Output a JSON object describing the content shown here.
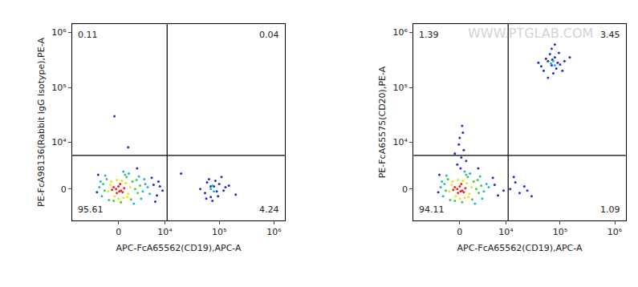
{
  "chart_data": [
    {
      "type": "scatter",
      "x_label": "APC-FcA65562(CD19),APC-A",
      "y_label": "PE-FcA98136(Rabbit IgG Isotype),PE-A",
      "xlim": [
        -10000,
        1600000
      ],
      "ylim": [
        -5000,
        1400000
      ],
      "xticks": [
        0,
        {
          "value": 10000,
          "label": "10⁴"
        },
        {
          "value": 100000,
          "label": "10⁵"
        },
        {
          "value": 1000000,
          "label": "10⁶"
        }
      ],
      "yticks": [
        0,
        {
          "value": 10000,
          "label": "10⁴"
        },
        {
          "value": 100000,
          "label": "10⁵"
        },
        {
          "value": 1000000,
          "label": "10⁶"
        }
      ],
      "gates": {
        "x": 11000,
        "y": 5500
      },
      "quadrants": {
        "upper_left": 0.11,
        "upper_right": 0.04,
        "lower_left": 95.61,
        "lower_right": 4.24
      },
      "series": [
        {
          "color": "#1f2bd6",
          "x": [
            6000,
            7000,
            8000,
            5500,
            -2800,
            9000,
            6500,
            -3000,
            7500,
            2500,
            45000,
            55000,
            60000,
            70000,
            80000,
            90000,
            100000,
            65000,
            75000,
            85000,
            120000,
            150000,
            200000,
            58000,
            95000,
            110000,
            130000,
            70000,
            -500,
            1200,
            20000
          ],
          "y": [
            500,
            -800,
            300,
            1400,
            1800,
            -200,
            -1600,
            -400,
            900,
            2800,
            0,
            -500,
            800,
            -1000,
            300,
            -300,
            600,
            1200,
            -1500,
            1000,
            -200,
            400,
            -700,
            -1200,
            -900,
            1500,
            200,
            300,
            30000,
            8000,
            2000
          ]
        },
        {
          "color": "#19b8e0",
          "x": [
            -2400,
            3500,
            4000,
            2800,
            -2200,
            4500,
            3200,
            -1700,
            5000,
            1300,
            -2600,
            3800,
            2000,
            600,
            70000,
            80000,
            75000
          ],
          "y": [
            900,
            -300,
            600,
            1600,
            -900,
            200,
            -1200,
            1700,
            -600,
            2000,
            200,
            1200,
            -1900,
            2300,
            0,
            -300,
            400
          ]
        },
        {
          "color": "#3fcf3f",
          "x": [
            -1800,
            1800,
            2200,
            -1500,
            2600,
            1000,
            -600,
            3000,
            1600,
            -2000,
            300,
            2400,
            -1200,
            800
          ],
          "y": [
            -200,
            900,
            0,
            1200,
            -500,
            1500,
            -1500,
            400,
            -1300,
            600,
            -1700,
            1100,
            -1400,
            1800
          ]
        },
        {
          "color": "#f2e11d",
          "x": [
            -1000,
            900,
            1200,
            -1300,
            400,
            -500,
            1500,
            -200,
            1100,
            -900,
            600,
            0
          ],
          "y": [
            500,
            700,
            -600,
            -300,
            1000,
            -900,
            200,
            1100,
            -1000,
            900,
            -1100,
            -1200
          ]
        },
        {
          "color": "#e8281e",
          "x": [
            -300,
            0,
            300,
            -600,
            500,
            200,
            -200,
            700,
            -800,
            100
          ],
          "y": [
            0,
            300,
            -200,
            200,
            -400,
            600,
            -500,
            100,
            -100,
            -300
          ]
        }
      ]
    },
    {
      "type": "scatter",
      "x_label": "APC-FcA65562(CD19),APC-A",
      "y_label": "PE-FcA65575(CD20),PE-A",
      "xlim": [
        -10000,
        1600000
      ],
      "ylim": [
        -5000,
        1400000
      ],
      "xticks": [
        0,
        {
          "value": 10000,
          "label": "10⁴"
        },
        {
          "value": 100000,
          "label": "10⁵"
        },
        {
          "value": 1000000,
          "label": "10⁶"
        }
      ],
      "yticks": [
        0,
        {
          "value": 10000,
          "label": "10⁴"
        },
        {
          "value": 100000,
          "label": "10⁵"
        },
        {
          "value": 1000000,
          "label": "10⁶"
        }
      ],
      "gates": {
        "x": 11000,
        "y": 5500
      },
      "quadrants": {
        "upper_left": 1.39,
        "upper_right": 3.45,
        "lower_left": 94.11,
        "lower_right": 1.09
      },
      "annotations": [
        {
          "text": "WWW.PTGLAB.COM"
        }
      ],
      "series": [
        {
          "color": "#1f2bd6",
          "x": [
            6000,
            7000,
            5500,
            -2800,
            9000,
            -3000,
            2500,
            -300,
            200,
            500,
            -100,
            800,
            0,
            400,
            -600,
            300,
            100,
            50000,
            60000,
            70000,
            80000,
            90000,
            65000,
            75000,
            85000,
            55000,
            100000,
            120000,
            45000,
            70000,
            95000,
            60000,
            80000,
            150000,
            40000,
            110000,
            72000,
            12000,
            15000,
            18000,
            22000,
            30000,
            14000,
            25000
          ],
          "y": [
            500,
            -800,
            1400,
            1800,
            -200,
            -400,
            2800,
            3500,
            5000,
            7000,
            9000,
            4200,
            12000,
            15000,
            6000,
            20000,
            2800,
            200000,
            300000,
            250000,
            350000,
            280000,
            400000,
            180000,
            220000,
            330000,
            260000,
            300000,
            240000,
            500000,
            420000,
            150000,
            600000,
            350000,
            280000,
            200000,
            320000,
            0,
            800,
            -500,
            300,
            -900,
            1500,
            -200
          ]
        },
        {
          "color": "#19b8e0",
          "x": [
            -2400,
            3500,
            4000,
            2800,
            -2200,
            4500,
            3200,
            -1700,
            1300,
            -2600,
            2000,
            600,
            68000,
            75000,
            80000
          ],
          "y": [
            900,
            -300,
            600,
            1600,
            -900,
            200,
            -1200,
            1700,
            2000,
            200,
            -1900,
            2300,
            270000,
            300000,
            250000
          ]
        },
        {
          "color": "#3fcf3f",
          "x": [
            -1800,
            1800,
            2200,
            -1500,
            2600,
            1000,
            -600,
            3000,
            1600,
            -2000,
            300,
            2400,
            -1200,
            800
          ],
          "y": [
            -200,
            900,
            0,
            1200,
            -500,
            1500,
            -1500,
            400,
            -1300,
            600,
            -1700,
            1100,
            -1400,
            1800
          ]
        },
        {
          "color": "#f2e11d",
          "x": [
            -1000,
            900,
            1200,
            -1300,
            400,
            -500,
            1500,
            -200,
            1100,
            -900,
            600,
            0
          ],
          "y": [
            500,
            700,
            -600,
            -300,
            1000,
            -900,
            200,
            1100,
            -1000,
            900,
            -1100,
            -1200
          ]
        },
        {
          "color": "#e8281e",
          "x": [
            -300,
            0,
            300,
            -600,
            500,
            200,
            -200,
            700,
            -800,
            100
          ],
          "y": [
            0,
            300,
            -200,
            200,
            -400,
            600,
            -500,
            100,
            -100,
            -300
          ]
        }
      ]
    }
  ]
}
